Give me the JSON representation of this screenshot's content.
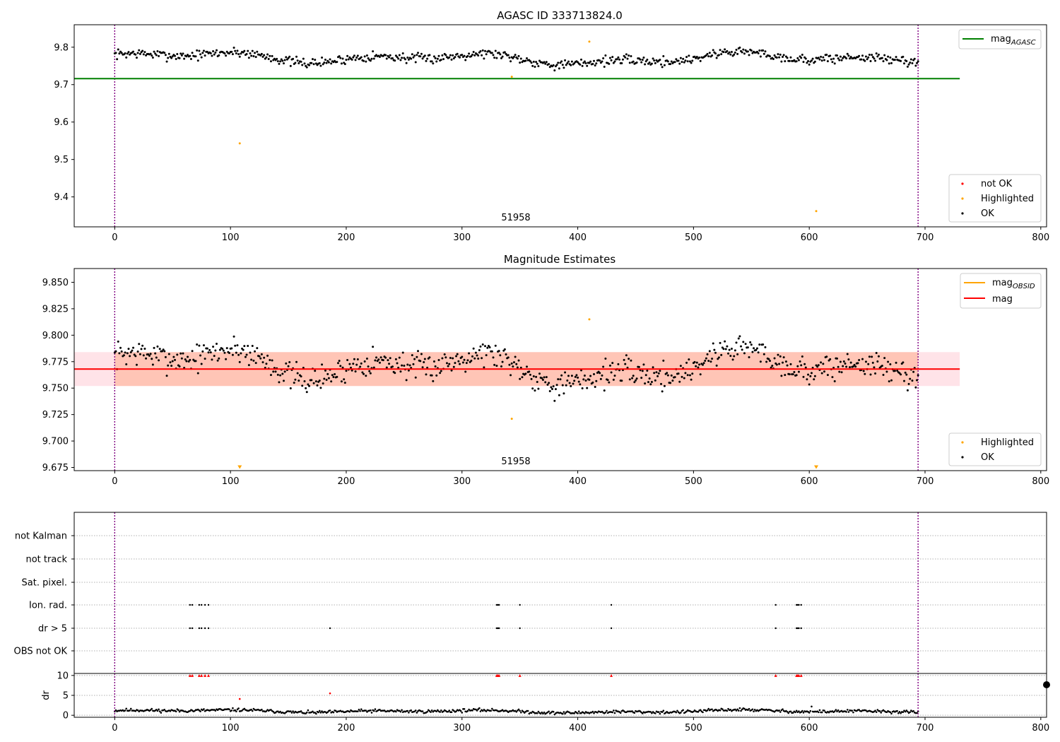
{
  "chart_data": [
    {
      "type": "scatter",
      "title": "AGASC ID 333713824.0",
      "annotation": "51958",
      "xlim": [
        -35,
        805
      ],
      "ylim": [
        9.32,
        9.86
      ],
      "x_ticks": [
        0,
        100,
        200,
        300,
        400,
        500,
        600,
        700,
        800
      ],
      "y_ticks": [
        9.4,
        9.5,
        9.6,
        9.7,
        9.8
      ],
      "x_tick_labels": [
        "0",
        "100",
        "200",
        "300",
        "400",
        "500",
        "600",
        "700",
        "800"
      ],
      "y_tick_labels": [
        "9.4",
        "9.5",
        "9.6",
        "9.7",
        "9.8"
      ],
      "vlines": [
        0,
        694
      ],
      "hline": {
        "name": "mag",
        "sub": "AGASC",
        "value": 9.716,
        "x_range": [
          -35,
          730
        ],
        "color": "#008000"
      },
      "legend_lines": [
        {
          "label": "mag",
          "sub": "AGASC",
          "color": "#008000"
        }
      ],
      "legend_markers": [
        {
          "label": "not OK",
          "color": "#ff0000"
        },
        {
          "label": "Highlighted",
          "color": "#ffa500"
        },
        {
          "label": "OK",
          "color": "#000000"
        }
      ],
      "series": [
        {
          "name": "OK",
          "color": "#000000",
          "generated": {
            "n": 695,
            "x_start": 0,
            "x_step": 1,
            "seed": 7,
            "center": 9.771,
            "amp": 0.022,
            "noise": 0.008
          }
        },
        {
          "name": "Highlighted",
          "color": "#ffa500",
          "points": [
            [
              108,
              9.543
            ],
            [
              343,
              9.721
            ],
            [
              410,
              9.815
            ],
            [
              606,
              9.362
            ]
          ]
        }
      ]
    },
    {
      "type": "scatter",
      "title": "Magnitude Estimates",
      "annotation": "51958",
      "xlim": [
        -35,
        805
      ],
      "ylim": [
        9.672,
        9.863
      ],
      "x_ticks": [
        0,
        100,
        200,
        300,
        400,
        500,
        600,
        700,
        800
      ],
      "y_ticks": [
        9.675,
        9.7,
        9.725,
        9.75,
        9.775,
        9.8,
        9.825,
        9.85
      ],
      "x_tick_labels": [
        "0",
        "100",
        "200",
        "300",
        "400",
        "500",
        "600",
        "700",
        "800"
      ],
      "y_tick_labels": [
        "9.675",
        "9.700",
        "9.725",
        "9.750",
        "9.775",
        "9.800",
        "9.825",
        "9.850"
      ],
      "vlines": [
        0,
        694
      ],
      "mag_line": {
        "name": "mag",
        "value": 9.768,
        "color": "#ff0000"
      },
      "band_outer": {
        "y": [
          9.752,
          9.784
        ],
        "x": [
          -35,
          730
        ],
        "color": "#ffc0cb"
      },
      "band_inner": {
        "y": [
          9.752,
          9.784
        ],
        "x": [
          0,
          694
        ],
        "color": "#ffa07a"
      },
      "legend_lines": [
        {
          "label": "mag",
          "sub": "OBSID",
          "color": "#ffa500"
        },
        {
          "label": "mag",
          "sub": "",
          "color": "#ff0000"
        }
      ],
      "legend_markers": [
        {
          "label": "Highlighted",
          "color": "#ffa500"
        },
        {
          "label": "OK",
          "color": "#000000"
        }
      ],
      "series": [
        {
          "name": "OK",
          "color": "#000000",
          "generated": {
            "n": 695,
            "x_start": 0,
            "x_step": 1,
            "seed": 7,
            "center": 9.771,
            "amp": 0.022,
            "noise": 0.008
          }
        },
        {
          "name": "Highlighted",
          "color": "#ffa500",
          "points": [
            [
              343,
              9.721
            ],
            [
              410,
              9.815
            ]
          ]
        },
        {
          "name": "Highlighted (off-scale low)",
          "color": "#ffa500",
          "marker": "triangle-down",
          "points": [
            [
              108,
              9.675
            ],
            [
              606,
              9.675
            ]
          ]
        }
      ]
    },
    {
      "type": "scatter",
      "title": "",
      "xlim": [
        -35,
        805
      ],
      "flag_rows": [
        "not Kalman",
        "not track",
        "Sat. pixel.",
        "Ion. rad.",
        "dr > 5",
        "OBS not OK"
      ],
      "flag_points": {
        "Ion. rad.": [
          65,
          67,
          73,
          75,
          78,
          81,
          330,
          331,
          332,
          350,
          429,
          571,
          589,
          590,
          591,
          593
        ],
        "dr > 5": [
          65,
          67,
          73,
          75,
          78,
          81,
          186,
          330,
          331,
          332,
          350,
          429,
          571,
          589,
          590,
          591,
          593
        ]
      },
      "dr_axis": {
        "ylabel": "dr",
        "ylim": [
          -0.5,
          10.5
        ],
        "y_ticks": [
          0,
          5,
          10
        ],
        "y_tick_labels": [
          "0",
          "5",
          "10"
        ],
        "clipped_value": 10,
        "clipped_x": [
          65,
          67,
          73,
          75,
          78,
          81,
          330,
          331,
          332,
          350,
          429,
          571,
          589,
          590,
          591,
          593
        ],
        "highlighted_red": [
          [
            108,
            4.1
          ],
          [
            186,
            5.5
          ]
        ],
        "baseline": {
          "n": 695,
          "x_start": 0,
          "x_step": 1,
          "seed": 11,
          "center": 1.0,
          "amp": 0.5,
          "noise": 0.25,
          "spike": [
            602,
            2.2
          ]
        }
      },
      "x_ticks": [
        0,
        100,
        200,
        300,
        400,
        500,
        600,
        700,
        800
      ],
      "x_tick_labels": [
        "0",
        "100",
        "200",
        "300",
        "400",
        "500",
        "600",
        "700",
        "800"
      ],
      "vlines": [
        0,
        694
      ]
    }
  ]
}
